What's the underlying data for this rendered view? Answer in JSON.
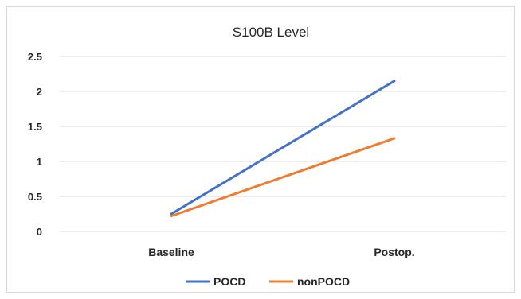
{
  "chart_data": {
    "type": "line",
    "title": "S100B Level",
    "xlabel": "",
    "ylabel": "",
    "categories": [
      "Baseline",
      "Postop."
    ],
    "ylim": [
      0,
      2.5
    ],
    "yticks": [
      "0",
      "0.5",
      "1",
      "1.5",
      "2",
      "2.5"
    ],
    "grid": true,
    "legend": "bottom",
    "series": [
      {
        "name": "POCD",
        "values": [
          0.25,
          2.15
        ],
        "color": "#4472C4"
      },
      {
        "name": "nonPOCD",
        "values": [
          0.22,
          1.33
        ],
        "color": "#ED7D31"
      }
    ]
  }
}
